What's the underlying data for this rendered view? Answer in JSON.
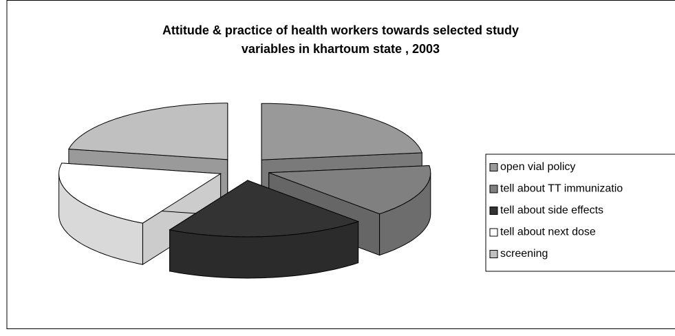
{
  "chart_data": {
    "type": "pie3d",
    "title": [
      "Attitude & practice of health workers towards selected study",
      "variables in khartoum state , 2003"
    ],
    "categories": [
      "open vial policy",
      "tell about TT immunizatio",
      "tell about side effects",
      "tell about next dose",
      "screening"
    ],
    "values": [
      23,
      15,
      20,
      20,
      22
    ],
    "colors": [
      "#999999",
      "#808080",
      "#333333",
      "#ffffff",
      "#c0c0c0"
    ],
    "legend": "right"
  }
}
